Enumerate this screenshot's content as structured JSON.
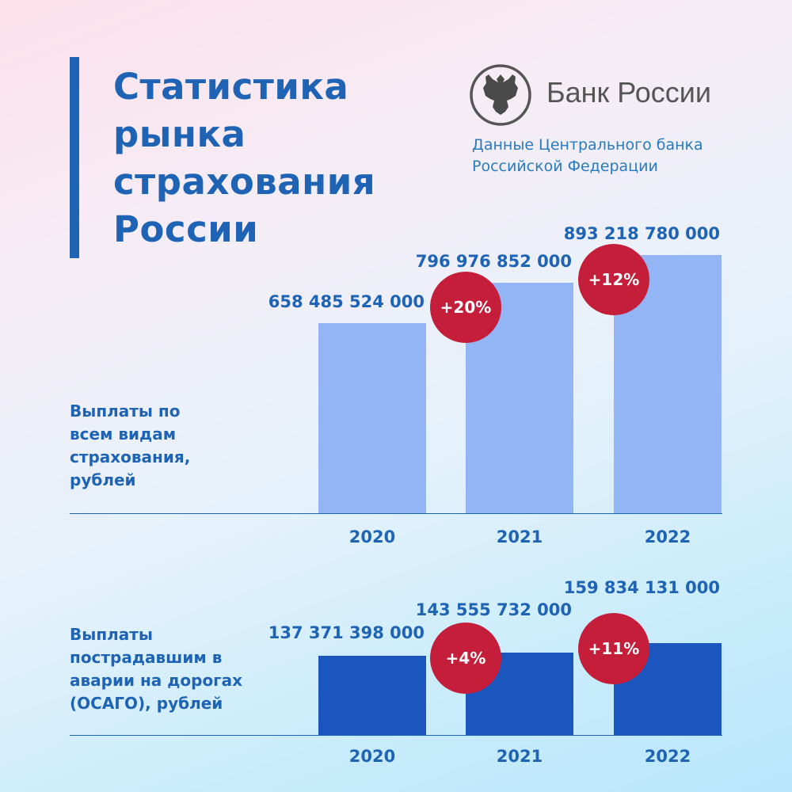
{
  "header": {
    "title_lines": [
      "Статистика",
      "рынка",
      "страхования",
      "России"
    ],
    "logo_text": "Банк России",
    "source_lines": [
      "Данные Центрального банка",
      "Российской Федерации"
    ]
  },
  "colors": {
    "accent": "#1f63b5",
    "bar_light": "#93b4f5",
    "bar_dark": "#1a56be",
    "badge": "#c41e3a"
  },
  "chart_data": [
    {
      "type": "bar",
      "title": "Выплаты по всем видам страхования, рублей",
      "caption_lines": [
        "Выплаты по",
        "всем видам",
        "страхования,",
        "рублей"
      ],
      "categories": [
        "2020",
        "2021",
        "2022"
      ],
      "values": [
        658485524000,
        796976852000,
        893218780000
      ],
      "value_labels": [
        "658 485 524 000",
        "796 976 852 000",
        "893 218 780 000"
      ],
      "growth_labels": [
        "",
        "+20%",
        "+12%"
      ],
      "ylim": [
        0,
        1000000000000
      ]
    },
    {
      "type": "bar",
      "title": "Выплаты пострадавшим в аварии на дорогах (ОСАГО), рублей",
      "caption_lines": [
        "Выплаты",
        "пострадавшим в",
        "аварии на дорогах",
        "(ОСАГО), рублей"
      ],
      "categories": [
        "2020",
        "2021",
        "2022"
      ],
      "values": [
        137371398000,
        143555732000,
        159834131000
      ],
      "value_labels": [
        "137 371 398 000",
        "143 555 732 000",
        "159 834 131 000"
      ],
      "growth_labels": [
        "",
        "+4%",
        "+11%"
      ],
      "ylim": [
        0,
        220000000000
      ]
    }
  ]
}
